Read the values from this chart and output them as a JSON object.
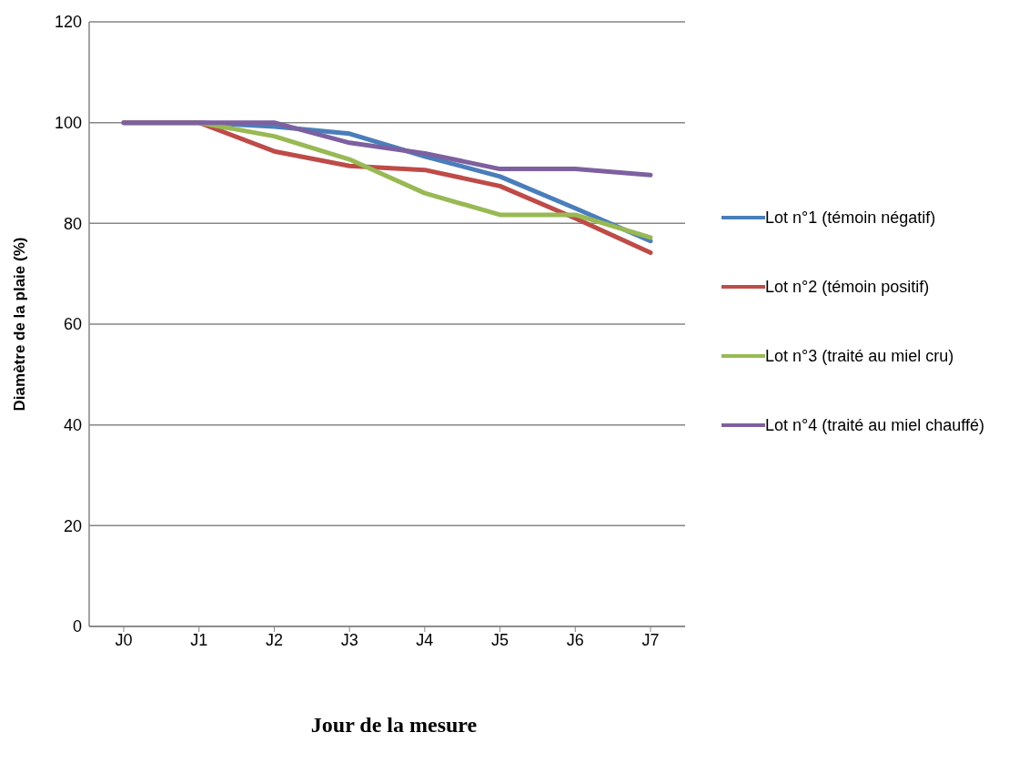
{
  "chart_data": {
    "type": "line",
    "xlabel": "Jour de la mesure",
    "ylabel": "Diamètre de la plaie (%)",
    "categories": [
      "J0",
      "J1",
      "J2",
      "J3",
      "J4",
      "J5",
      "J6",
      "J7"
    ],
    "series": [
      {
        "name": "Lot n°1 (témoin négatif)",
        "color": "#4a7ebb",
        "values": [
          100,
          100,
          99.2,
          97.8,
          93.3,
          89.3,
          83,
          76.5
        ]
      },
      {
        "name": "Lot n°2 (témoin positif)",
        "color": "#be4b48",
        "values": [
          100,
          100,
          94.3,
          91.4,
          90.6,
          87.4,
          81,
          74.2
        ]
      },
      {
        "name": "Lot n°3 (traité au miel cru)",
        "color": "#98b954",
        "values": [
          100,
          100,
          97.3,
          92.7,
          86,
          81.7,
          81.7,
          77.2
        ]
      },
      {
        "name": "Lot n°4 (traité au miel chauffé)",
        "color": "#7d60a0",
        "values": [
          100,
          100,
          100,
          96,
          93.9,
          90.8,
          90.8,
          89.6
        ]
      }
    ],
    "ylim": [
      0,
      120
    ],
    "yticks": [
      0,
      20,
      40,
      60,
      80,
      100,
      120
    ],
    "grid": "y",
    "legend": "right",
    "marker": "none",
    "line_style": "solid"
  }
}
